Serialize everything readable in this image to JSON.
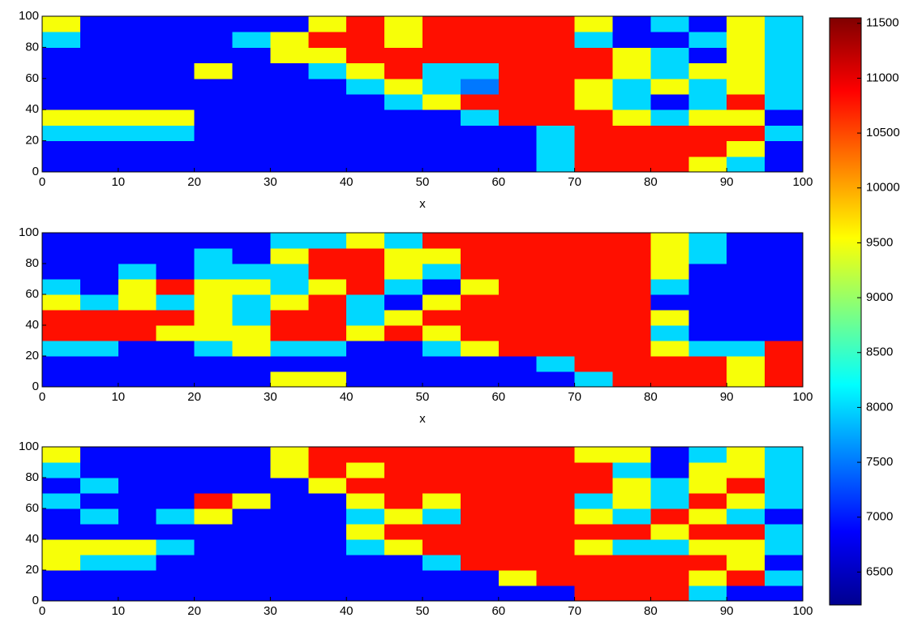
{
  "chart_data": [
    {
      "type": "heatmap",
      "xlabel": "x",
      "xlim": [
        0,
        100
      ],
      "ylim": [
        0,
        100
      ],
      "xticks": [
        0,
        10,
        20,
        30,
        40,
        50,
        60,
        70,
        80,
        90,
        100
      ],
      "yticks": [
        0,
        20,
        40,
        60,
        80,
        100
      ],
      "xbins": [
        0,
        5,
        10,
        15,
        20,
        25,
        30,
        35,
        40,
        45,
        50,
        55,
        60,
        65,
        70,
        75,
        80,
        85,
        90,
        95,
        100
      ],
      "ybins": [
        0,
        10,
        20,
        30,
        40,
        50,
        60,
        70,
        80,
        90,
        100
      ],
      "values": [
        [
          6900,
          6900,
          6900,
          6900,
          6900,
          6900,
          6900,
          6900,
          6900,
          6900,
          6900,
          6900,
          6900,
          8000,
          10800,
          10800,
          10800,
          9500,
          8000,
          6900
        ],
        [
          6900,
          6900,
          6900,
          6900,
          6900,
          6900,
          6900,
          6900,
          6900,
          6900,
          6900,
          6900,
          6900,
          8000,
          10800,
          10800,
          10800,
          10800,
          9500,
          6900
        ],
        [
          8000,
          8000,
          8000,
          8000,
          6900,
          6900,
          6900,
          6900,
          6900,
          6900,
          6900,
          6900,
          6900,
          8000,
          10800,
          10800,
          10800,
          10800,
          10800,
          8000
        ],
        [
          9500,
          9500,
          9500,
          9500,
          6900,
          6900,
          6900,
          6900,
          6900,
          6900,
          6900,
          8000,
          10800,
          10800,
          10800,
          9500,
          8000,
          9500,
          9500,
          6900
        ],
        [
          6900,
          6900,
          6900,
          6900,
          6900,
          6900,
          6900,
          6900,
          6900,
          8000,
          9500,
          10800,
          10800,
          10800,
          9500,
          8000,
          6900,
          8000,
          10800,
          8000
        ],
        [
          6900,
          6900,
          6900,
          6900,
          6900,
          6900,
          6900,
          6900,
          8000,
          9500,
          8000,
          7500,
          10800,
          10800,
          9500,
          8000,
          9500,
          8000,
          9500,
          8000
        ],
        [
          6900,
          6900,
          6900,
          6900,
          9500,
          6900,
          6900,
          8000,
          9500,
          10800,
          8000,
          8000,
          10800,
          10800,
          10800,
          9500,
          8000,
          9500,
          9500,
          8000
        ],
        [
          6900,
          6900,
          6900,
          6900,
          6900,
          6900,
          9500,
          9500,
          10800,
          10800,
          10800,
          10800,
          10800,
          10800,
          10800,
          9500,
          8000,
          6900,
          9500,
          8000
        ],
        [
          8000,
          6900,
          6900,
          6900,
          6900,
          8000,
          9500,
          10800,
          10800,
          9500,
          10800,
          10800,
          10800,
          10800,
          8000,
          6900,
          6900,
          8000,
          9500,
          8000
        ],
        [
          9500,
          6900,
          6900,
          6900,
          6900,
          6900,
          6900,
          9500,
          10800,
          9500,
          10800,
          10800,
          10800,
          10800,
          9500,
          6900,
          8000,
          6900,
          9500,
          8000
        ]
      ]
    },
    {
      "type": "heatmap",
      "xlabel": "x",
      "xlim": [
        0,
        100
      ],
      "ylim": [
        0,
        100
      ],
      "xticks": [
        0,
        10,
        20,
        30,
        40,
        50,
        60,
        70,
        80,
        90,
        100
      ],
      "yticks": [
        0,
        20,
        40,
        60,
        80,
        100
      ],
      "xbins": [
        0,
        5,
        10,
        15,
        20,
        25,
        30,
        35,
        40,
        45,
        50,
        55,
        60,
        65,
        70,
        75,
        80,
        85,
        90,
        95,
        100
      ],
      "ybins": [
        0,
        10,
        20,
        30,
        40,
        50,
        60,
        70,
        80,
        90,
        100
      ],
      "values": [
        [
          6900,
          6900,
          6900,
          6900,
          6900,
          6900,
          9500,
          9500,
          6900,
          6900,
          6900,
          6900,
          6900,
          6900,
          8000,
          10800,
          10800,
          10800,
          9500,
          10800
        ],
        [
          6900,
          6900,
          6900,
          6900,
          6900,
          6900,
          6900,
          6900,
          6900,
          6900,
          6900,
          6900,
          6900,
          8000,
          10800,
          10800,
          10800,
          10800,
          9500,
          10800
        ],
        [
          8000,
          8000,
          6900,
          6900,
          8000,
          9500,
          8000,
          8000,
          6900,
          6900,
          8000,
          9500,
          10800,
          10800,
          10800,
          10800,
          9500,
          8000,
          8000,
          10800
        ],
        [
          10800,
          10800,
          10800,
          9500,
          9500,
          9500,
          10800,
          10800,
          9500,
          10800,
          9500,
          10800,
          10800,
          10800,
          10800,
          10800,
          8000,
          6900,
          6900,
          6900
        ],
        [
          10800,
          10800,
          10800,
          10800,
          9500,
          8000,
          10800,
          10800,
          8000,
          9500,
          10800,
          10800,
          10800,
          10800,
          10800,
          10800,
          9500,
          6900,
          6900,
          6900
        ],
        [
          9500,
          8000,
          9500,
          8000,
          9500,
          8000,
          9500,
          10800,
          8000,
          6900,
          9500,
          10800,
          10800,
          10800,
          10800,
          10800,
          6900,
          6900,
          6900,
          6900
        ],
        [
          8000,
          6900,
          9500,
          10800,
          9500,
          9500,
          8000,
          9500,
          10800,
          8000,
          6900,
          9500,
          10800,
          10800,
          10800,
          10800,
          8000,
          6900,
          6900,
          6900
        ],
        [
          6900,
          6900,
          8000,
          6900,
          8000,
          8000,
          8000,
          10800,
          10800,
          9500,
          8000,
          10800,
          10800,
          10800,
          10800,
          10800,
          9500,
          6900,
          6900,
          6900
        ],
        [
          6900,
          6900,
          6900,
          6900,
          8000,
          6900,
          9500,
          10800,
          10800,
          9500,
          9500,
          10800,
          10800,
          10800,
          10800,
          10800,
          9500,
          8000,
          6900,
          6900
        ],
        [
          6900,
          6900,
          6900,
          6900,
          6900,
          6900,
          8000,
          8000,
          9500,
          8000,
          10800,
          10800,
          10800,
          10800,
          10800,
          10800,
          9500,
          8000,
          6900,
          6900
        ]
      ]
    },
    {
      "type": "heatmap",
      "xlim": [
        0,
        100
      ],
      "ylim": [
        0,
        100
      ],
      "xticks": [
        0,
        10,
        20,
        30,
        40,
        50,
        60,
        70,
        80,
        90,
        100
      ],
      "yticks": [
        0,
        20,
        40,
        60,
        80,
        100
      ],
      "xbins": [
        0,
        5,
        10,
        15,
        20,
        25,
        30,
        35,
        40,
        45,
        50,
        55,
        60,
        65,
        70,
        75,
        80,
        85,
        90,
        95,
        100
      ],
      "ybins": [
        0,
        10,
        20,
        30,
        40,
        50,
        60,
        70,
        80,
        90,
        100
      ],
      "values": [
        [
          6900,
          6900,
          6900,
          6900,
          6900,
          6900,
          6900,
          6900,
          6900,
          6900,
          6900,
          6900,
          6900,
          6900,
          10800,
          10800,
          10800,
          8000,
          6900,
          6900
        ],
        [
          6900,
          6900,
          6900,
          6900,
          6900,
          6900,
          6900,
          6900,
          6900,
          6900,
          6900,
          6900,
          9500,
          10800,
          10800,
          10800,
          10800,
          9500,
          10800,
          8000
        ],
        [
          9500,
          8000,
          8000,
          6900,
          6900,
          6900,
          6900,
          6900,
          6900,
          6900,
          8000,
          10800,
          10800,
          10800,
          10800,
          10800,
          10800,
          10800,
          9500,
          6900
        ],
        [
          9500,
          9500,
          9500,
          8000,
          6900,
          6900,
          6900,
          6900,
          8000,
          9500,
          10800,
          10800,
          10800,
          10800,
          9500,
          8000,
          8000,
          9500,
          9500,
          8000
        ],
        [
          6900,
          6900,
          6900,
          6900,
          6900,
          6900,
          6900,
          6900,
          9500,
          10800,
          10800,
          10800,
          10800,
          10800,
          10800,
          10800,
          9500,
          10800,
          10800,
          8000
        ],
        [
          6900,
          8000,
          6900,
          8000,
          9500,
          6900,
          6900,
          6900,
          8000,
          9500,
          8000,
          10800,
          10800,
          10800,
          9500,
          8000,
          10800,
          9500,
          8000,
          6900
        ],
        [
          8000,
          6900,
          6900,
          6900,
          10800,
          9500,
          6900,
          6900,
          9500,
          10800,
          9500,
          10800,
          10800,
          10800,
          8000,
          9500,
          8000,
          10800,
          9500,
          8000
        ],
        [
          6900,
          8000,
          6900,
          6900,
          6900,
          6900,
          6900,
          9500,
          10800,
          10800,
          10800,
          10800,
          10800,
          10800,
          10800,
          9500,
          8000,
          9500,
          10800,
          8000
        ],
        [
          8000,
          6900,
          6900,
          6900,
          6900,
          6900,
          9500,
          10800,
          9500,
          10800,
          10800,
          10800,
          10800,
          10800,
          10800,
          8000,
          6900,
          9500,
          9500,
          8000
        ],
        [
          9500,
          6900,
          6900,
          6900,
          6900,
          6900,
          9500,
          10800,
          10800,
          10800,
          10800,
          10800,
          10800,
          10800,
          9500,
          9500,
          6900,
          8000,
          9500,
          8000
        ]
      ]
    }
  ],
  "colorbar": {
    "colormap": "jet",
    "zlim": [
      6200,
      11550
    ],
    "zticks": [
      6500,
      7000,
      7500,
      8000,
      8500,
      9000,
      9500,
      10000,
      10500,
      11000,
      11500
    ]
  }
}
